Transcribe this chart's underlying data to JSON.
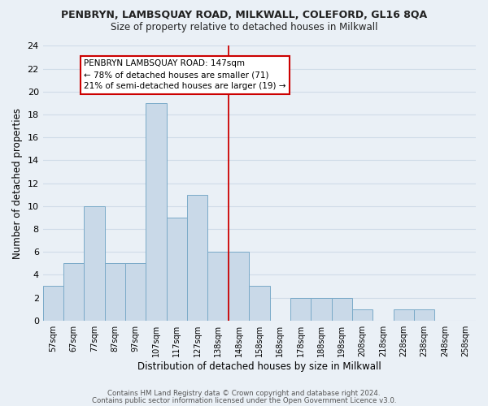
{
  "title1": "PENBRYN, LAMBSQUAY ROAD, MILKWALL, COLEFORD, GL16 8QA",
  "title2": "Size of property relative to detached houses in Milkwall",
  "xlabel": "Distribution of detached houses by size in Milkwall",
  "ylabel": "Number of detached properties",
  "bar_labels": [
    "57sqm",
    "67sqm",
    "77sqm",
    "87sqm",
    "97sqm",
    "107sqm",
    "117sqm",
    "127sqm",
    "138sqm",
    "148sqm",
    "158sqm",
    "168sqm",
    "178sqm",
    "188sqm",
    "198sqm",
    "208sqm",
    "218sqm",
    "228sqm",
    "238sqm",
    "248sqm",
    "258sqm"
  ],
  "bar_values": [
    3,
    5,
    10,
    5,
    5,
    19,
    9,
    11,
    6,
    6,
    3,
    0,
    2,
    2,
    2,
    1,
    0,
    1,
    1,
    0,
    0
  ],
  "bar_color": "#c9d9e8",
  "bar_edgecolor": "#7aaac8",
  "ylim": [
    0,
    24
  ],
  "yticks": [
    0,
    2,
    4,
    6,
    8,
    10,
    12,
    14,
    16,
    18,
    20,
    22,
    24
  ],
  "vline_x_index": 9,
  "vline_color": "#cc0000",
  "annotation_title": "PENBRYN LAMBSQUAY ROAD: 147sqm",
  "annotation_line1": "← 78% of detached houses are smaller (71)",
  "annotation_line2": "21% of semi-detached houses are larger (19) →",
  "annotation_box_color": "#ffffff",
  "annotation_box_edgecolor": "#cc0000",
  "footer1": "Contains HM Land Registry data © Crown copyright and database right 2024.",
  "footer2": "Contains public sector information licensed under the Open Government Licence v3.0.",
  "background_color": "#eaf0f6",
  "grid_color": "#d0dce8"
}
